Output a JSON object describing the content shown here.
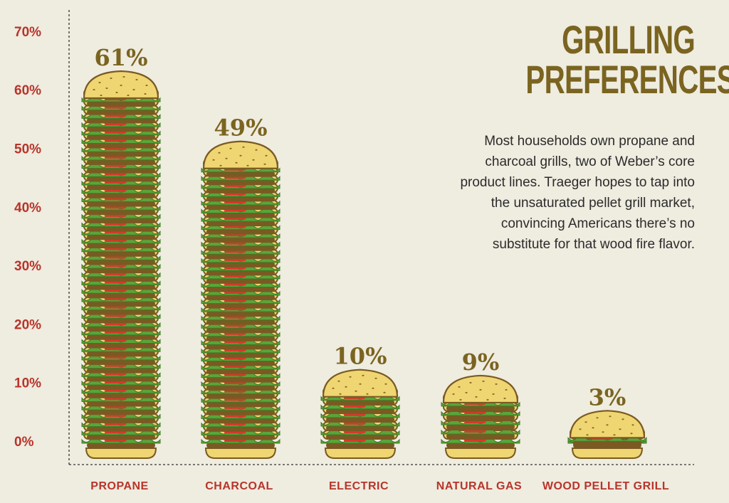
{
  "title_lines": [
    "GRILLING",
    "PREFERENCES"
  ],
  "description": "Most households own propane and charcoal grills, two of Weber’s core product lines. Traeger hopes to tap into the unsaturated pellet grill market, convincing Americans there’s no substitute for that wood fire flavor.",
  "colors": {
    "background": "#efece0",
    "axis_label": "#b8342a",
    "value_label": "#7a6420",
    "bun": "#efd672",
    "bun_outline": "#7a5a22",
    "patty": "#7a5a22",
    "lettuce": "#5aa53a",
    "tomato": "#d8382c"
  },
  "chart_data": {
    "type": "bar",
    "title": "GRILLING PREFERENCES",
    "xlabel": "",
    "ylabel": "",
    "ylim": [
      0,
      70
    ],
    "yticks": [
      0,
      10,
      20,
      30,
      40,
      50,
      60,
      70
    ],
    "ytick_labels": [
      "0%",
      "10%",
      "20%",
      "30%",
      "40%",
      "50%",
      "60%",
      "70%"
    ],
    "categories": [
      "PROPANE",
      "CHARCOAL",
      "ELECTRIC",
      "NATURAL GAS",
      "WOOD PELLET GRILL"
    ],
    "values": [
      61,
      49,
      10,
      9,
      3
    ],
    "value_labels": [
      "61%",
      "49%",
      "10%",
      "9%",
      "3%"
    ],
    "grid": false,
    "legend": "none",
    "mark": "stacked-burger-icons"
  }
}
